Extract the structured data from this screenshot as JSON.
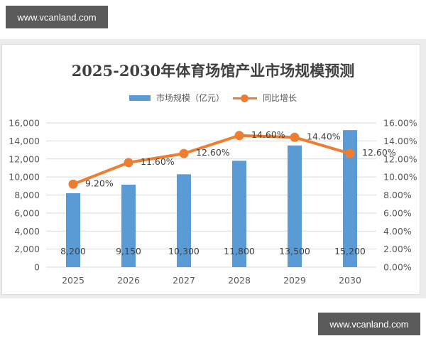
{
  "watermarks": {
    "top_left": "www.vcanland.com",
    "bottom_right": "www.vcanland.com"
  },
  "colors": {
    "bar": "#5b9bd5",
    "line": "#ed7d31",
    "grid": "#d9d9d9",
    "text": "#595959",
    "title": "#404040"
  },
  "chart_data": {
    "type": "bar+line",
    "title": "2025-2030年体育场馆产业市场规模预测",
    "categories": [
      "2025",
      "2026",
      "2027",
      "2028",
      "2029",
      "2030"
    ],
    "series": [
      {
        "name": "市场规模（亿元）",
        "type": "bar",
        "axis": "left",
        "values": [
          8200,
          9150,
          10300,
          11800,
          13500,
          15200
        ],
        "labels": [
          "8,200",
          "9,150",
          "10,300",
          "11,800",
          "13,500",
          "15,200"
        ]
      },
      {
        "name": "同比增长",
        "type": "line",
        "axis": "right",
        "values": [
          9.2,
          11.6,
          12.6,
          14.6,
          14.4,
          12.6
        ],
        "labels": [
          "9.20%",
          "11.60%",
          "12.60%",
          "14.60%",
          "14.40%",
          "12.60%"
        ]
      }
    ],
    "y_left": {
      "ylim": [
        0,
        16000
      ],
      "ticks": [
        "0",
        "2,000",
        "4,000",
        "6,000",
        "8,000",
        "10,000",
        "12,000",
        "14,000",
        "16,000"
      ]
    },
    "y_right": {
      "ylim": [
        0,
        16
      ],
      "ticks": [
        "0.00%",
        "2.00%",
        "4.00%",
        "6.00%",
        "8.00%",
        "10.00%",
        "12.00%",
        "14.00%",
        "16.00%"
      ]
    },
    "xlabel": "",
    "ylabel": "",
    "grid": true,
    "legend_position": "top"
  }
}
